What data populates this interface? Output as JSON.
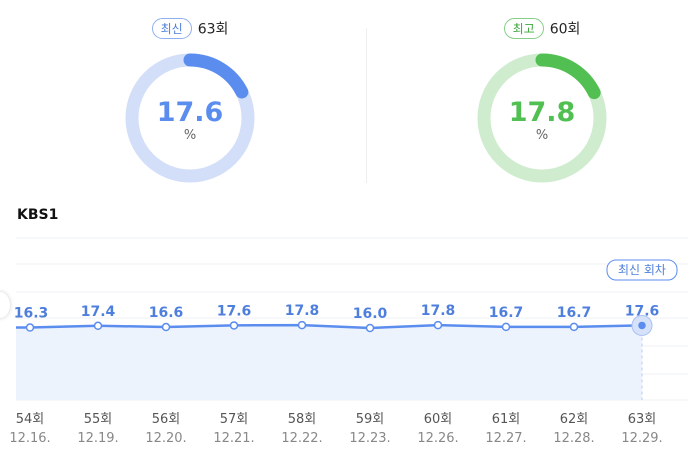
{
  "latest": {
    "badge": "최신",
    "episode": "63회",
    "value": "17.6",
    "unit": "%",
    "percent": 17.6,
    "color": "#5b8def",
    "track": "#d3def8"
  },
  "best": {
    "badge": "최고",
    "episode": "60회",
    "value": "17.8",
    "unit": "%",
    "percent": 17.8,
    "color": "#52bf52",
    "track": "#cfeccf"
  },
  "chart_data": {
    "type": "line",
    "title": "KBS1",
    "categories": [
      "54회",
      "55회",
      "56회",
      "57회",
      "58회",
      "59회",
      "60회",
      "61회",
      "62회",
      "63회"
    ],
    "dates": [
      "12.16.",
      "12.19.",
      "12.20.",
      "12.21.",
      "12.22.",
      "12.23.",
      "12.26.",
      "12.27.",
      "12.28.",
      "12.29."
    ],
    "series": [
      {
        "values": [
          16.3,
          17.4,
          16.6,
          17.6,
          17.8,
          16.0,
          17.8,
          16.7,
          16.7,
          17.6
        ]
      }
    ],
    "latest_label": "최신 회차",
    "grid": true,
    "color": "#5b8def"
  }
}
